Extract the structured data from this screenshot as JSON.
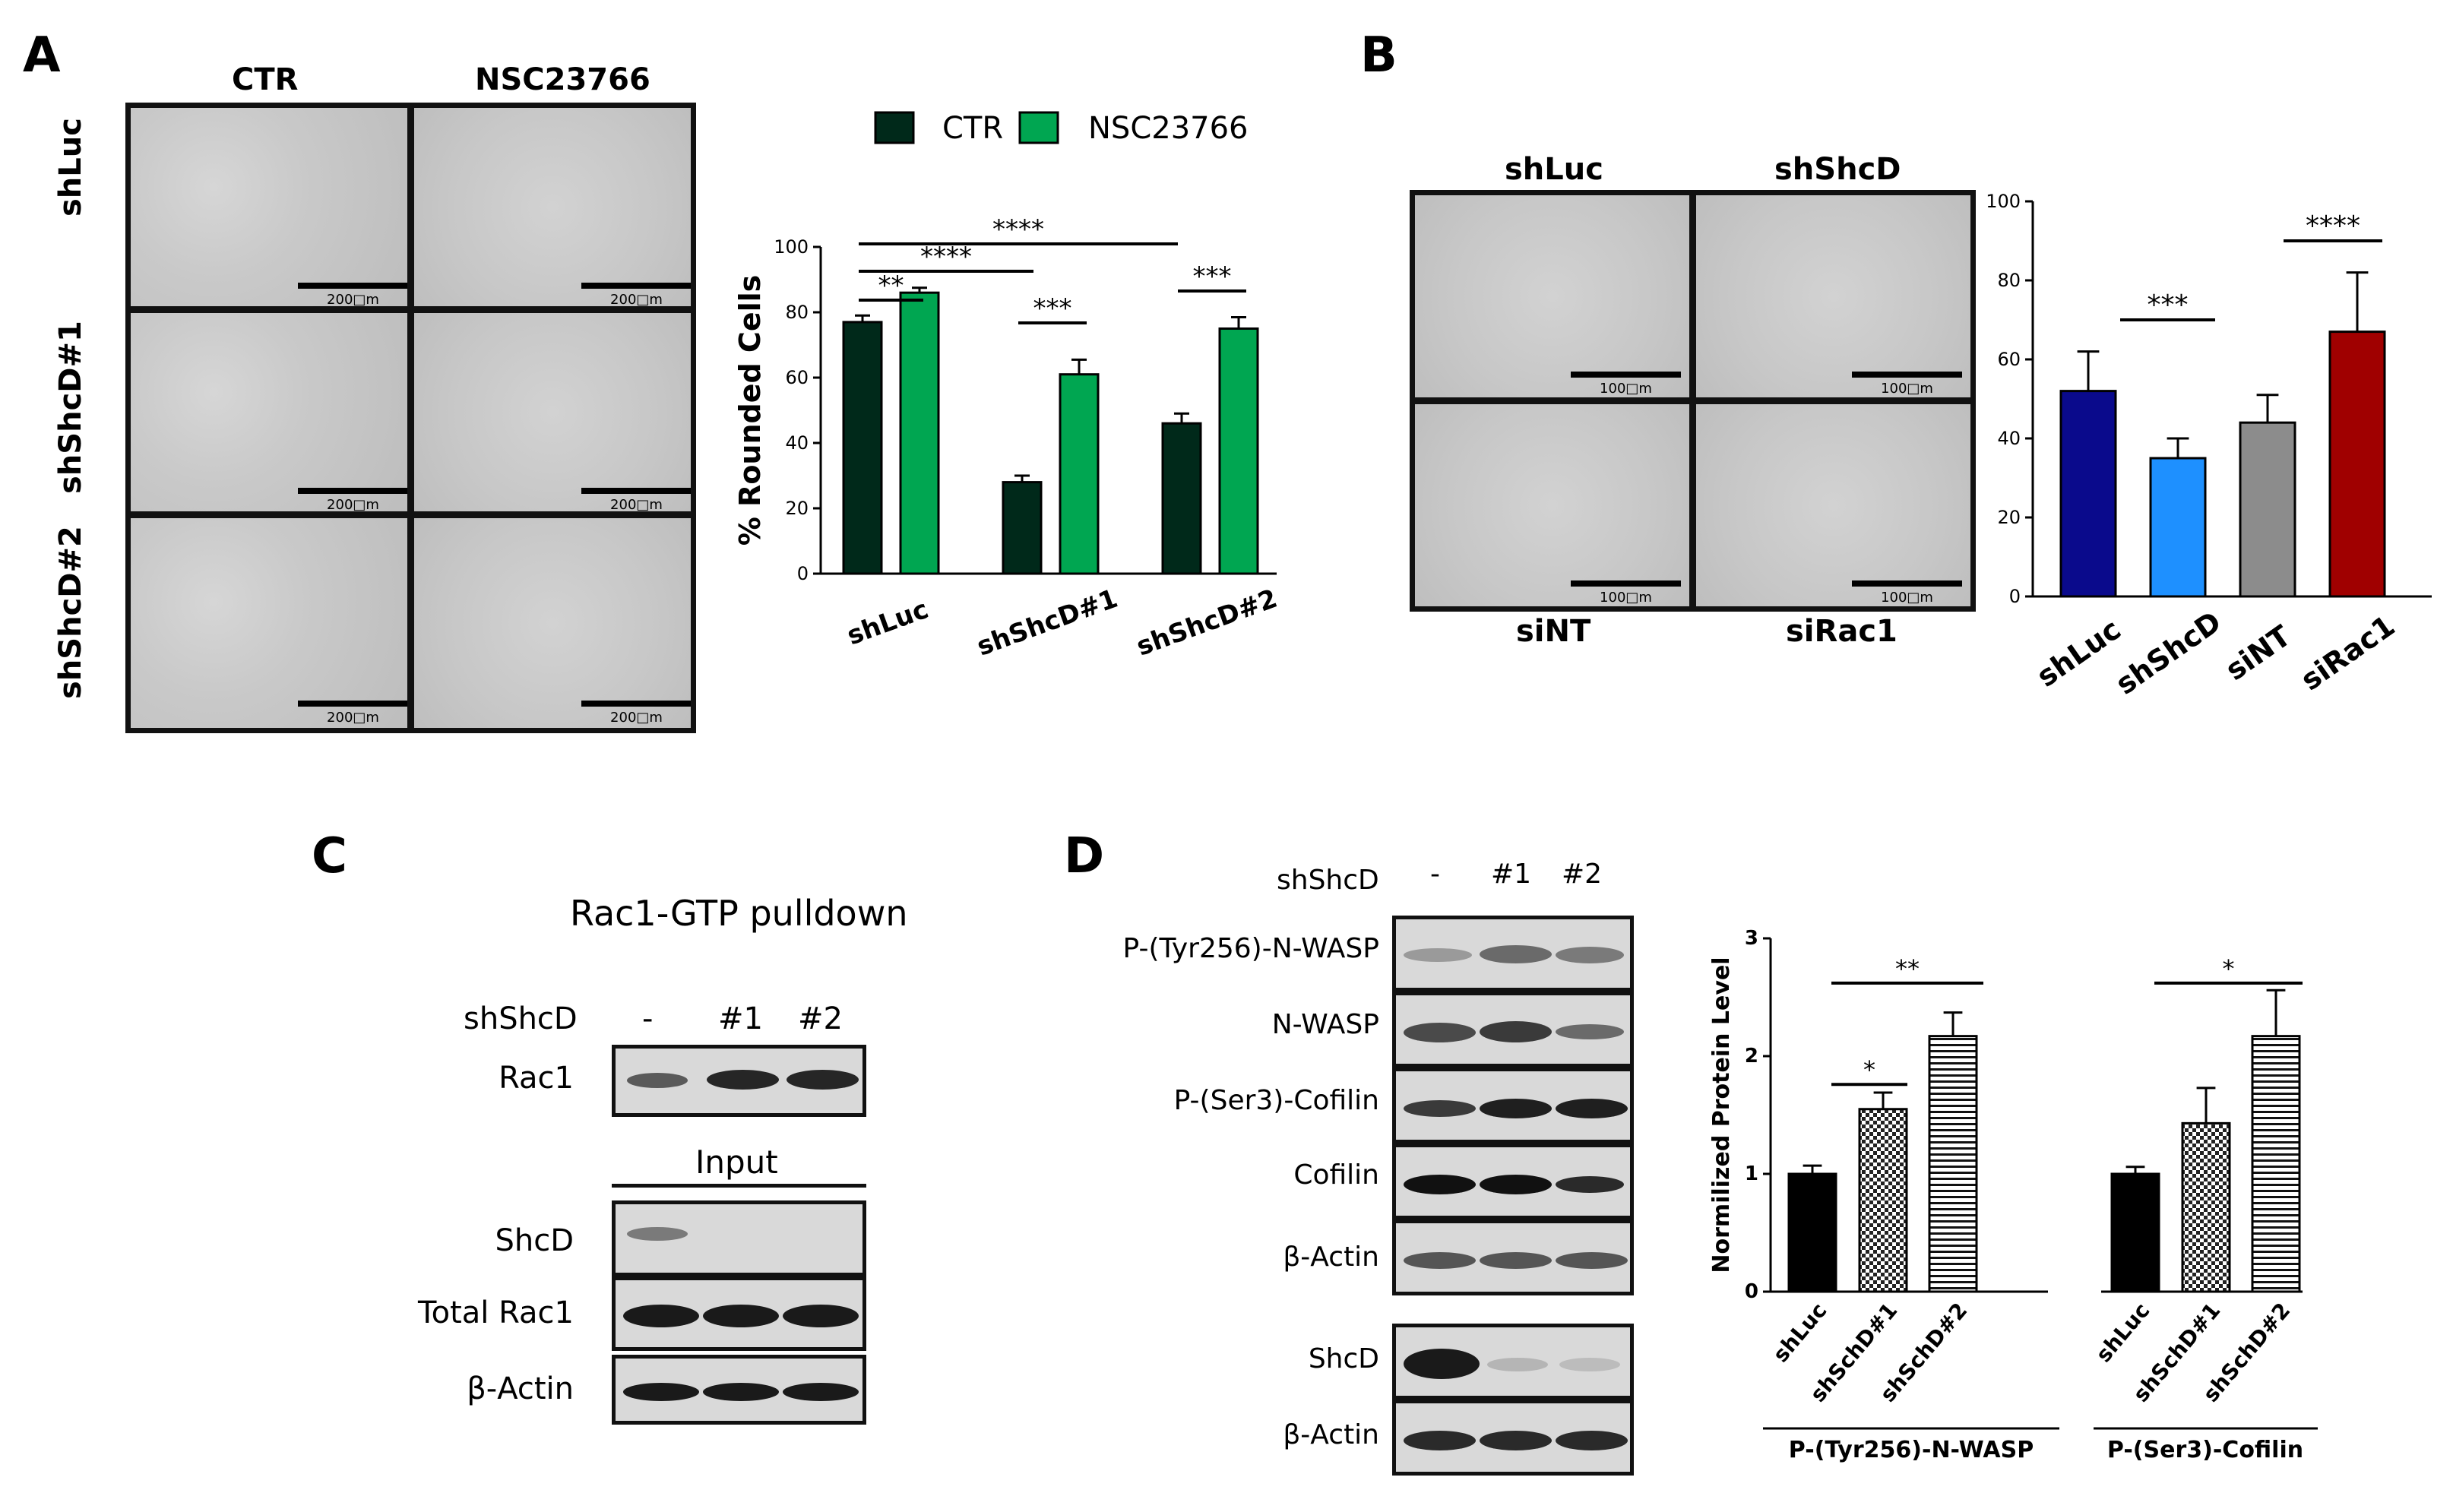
{
  "panels": {
    "a": "A",
    "b": "B",
    "c": "C",
    "d": "D"
  },
  "panel_a": {
    "col_headers": [
      "CTR",
      "NSC23766"
    ],
    "row_labels": [
      "shLuc",
      "shShcD#1",
      "shShcD#2"
    ],
    "scale_label": "200□m"
  },
  "panel_b": {
    "top_headers": [
      "shLuc",
      "shShcD"
    ],
    "bottom_headers": [
      "siNT",
      "siRac1"
    ],
    "scale_label": "100□m"
  },
  "panel_c": {
    "title": "Rac1-GTP pulldown",
    "lane_header": "shShcD",
    "lanes": [
      "-",
      "#1",
      "#2"
    ],
    "pulldown_row": "Rac1",
    "input_label": "Input",
    "input_rows": [
      "ShcD",
      "Total Rac1",
      "β-Actin"
    ]
  },
  "panel_d": {
    "lane_header": "shShcD",
    "lanes": [
      "-",
      "#1",
      "#2"
    ],
    "rows": [
      "P-(Tyr256)-N-WASP",
      "N-WASP",
      "P-(Ser3)-Cofilin",
      "Cofilin",
      "β-Actin"
    ],
    "rows2": [
      "ShcD",
      "β-Actin"
    ]
  },
  "colors": {
    "dark_green": "#00291a",
    "green": "#00a651",
    "navy": "#0a0a8c",
    "blue": "#1e90ff",
    "gray": "#8c8c8c",
    "red": "#a00000"
  },
  "chart_data": [
    {
      "type": "bar",
      "categories": [
        "shLuc",
        "shShcD#1",
        "shShcD#2"
      ],
      "series": [
        {
          "name": "CTR",
          "values": [
            77,
            28,
            46
          ],
          "errors": [
            2,
            2,
            3
          ]
        },
        {
          "name": "NSC23766",
          "values": [
            86,
            61,
            75
          ],
          "errors": [
            1.5,
            4.5,
            3.5
          ]
        }
      ],
      "ylabel": "% Rounded Cells",
      "ylim": [
        0,
        100
      ],
      "yticks": [
        "0",
        "20",
        "40",
        "60",
        "80",
        "100"
      ],
      "legend": "top",
      "significance": [
        "**",
        "****",
        "****",
        "***",
        "***"
      ]
    },
    {
      "type": "bar",
      "categories": [
        "shLuc",
        "shShcD",
        "siNT",
        "siRac1"
      ],
      "values": [
        52,
        35,
        44,
        67
      ],
      "errors": [
        10,
        5,
        7,
        15
      ],
      "ylim": [
        0,
        100
      ],
      "yticks": [
        "0",
        "20",
        "40",
        "60",
        "80",
        "100"
      ],
      "significance": [
        "***",
        "****"
      ]
    },
    {
      "type": "bar",
      "groups": [
        "P-(Tyr256)-N-WASP",
        "P-(Ser3)-Cofilin"
      ],
      "categories": [
        "shLuc",
        "shSchD#1",
        "shSchD#2",
        "shLuc",
        "shSchD#1",
        "shSchD#2"
      ],
      "values": [
        1.0,
        1.55,
        2.17,
        1.0,
        1.43,
        2.17
      ],
      "errors": [
        0.07,
        0.14,
        0.2,
        0.06,
        0.3,
        0.39
      ],
      "ylabel": "Normilized Protein Level",
      "ylim": [
        0,
        3
      ],
      "yticks": [
        "0",
        "1",
        "2",
        "3"
      ],
      "significance": [
        "**",
        "*",
        "*"
      ]
    }
  ]
}
